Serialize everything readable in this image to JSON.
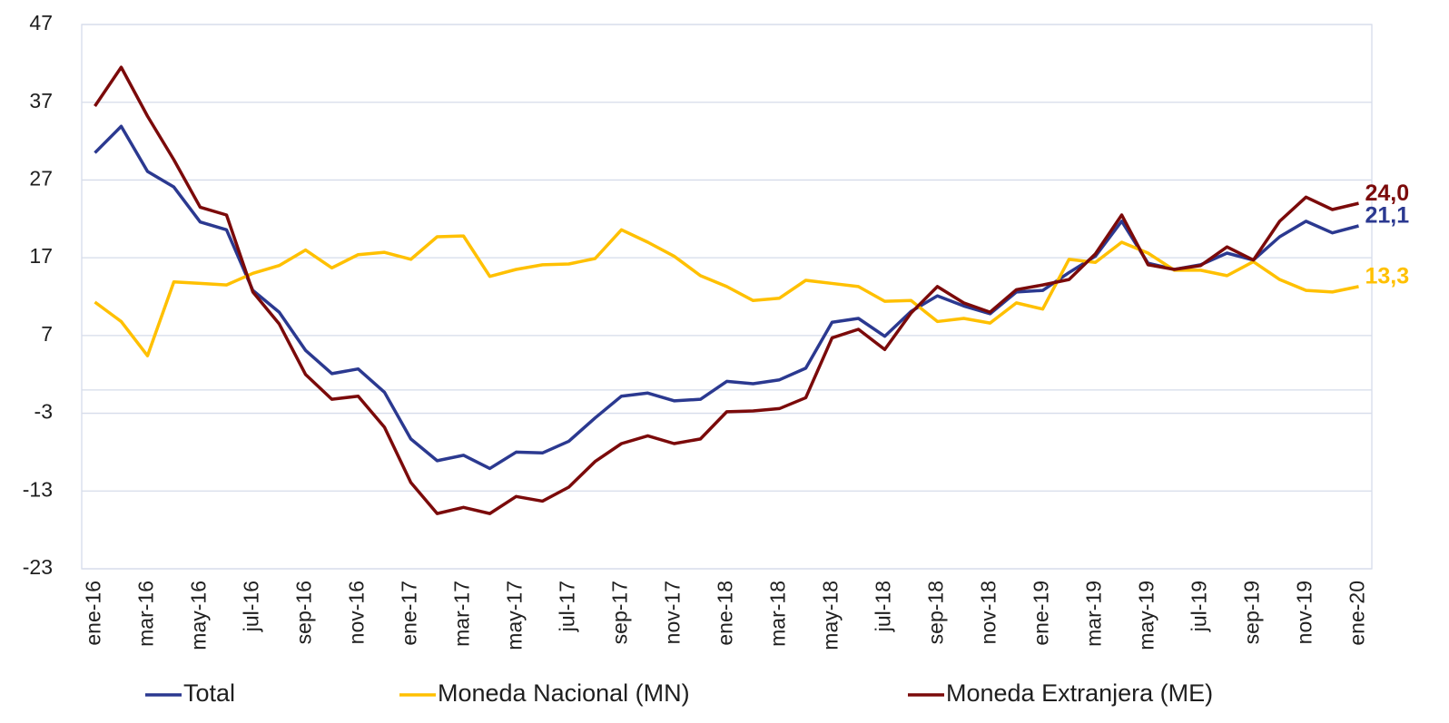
{
  "chart_data": {
    "type": "line",
    "categories": [
      "ene-16",
      null,
      "mar-16",
      null,
      "may-16",
      null,
      "jul-16",
      null,
      "sep-16",
      null,
      "nov-16",
      null,
      "ene-17",
      null,
      "mar-17",
      null,
      "may-17",
      null,
      "jul-17",
      null,
      "sep-17",
      null,
      "nov-17",
      null,
      "ene-18",
      null,
      "mar-18",
      null,
      "may-18",
      null,
      "jul-18",
      null,
      "sep-18",
      null,
      "nov-18",
      null,
      "ene-19",
      null,
      "mar-19",
      null,
      "may-19",
      null,
      "jul-19",
      null,
      "sep-19",
      null,
      "nov-19",
      null,
      "ene-20"
    ],
    "series": [
      {
        "name": "Total",
        "color": "#2b3990",
        "values": [
          30.5,
          33.9,
          28.1,
          26.1,
          21.6,
          20.6,
          12.8,
          10.0,
          5.1,
          2.1,
          2.7,
          -0.3,
          -6.3,
          -9.1,
          -8.4,
          -10.1,
          -8.0,
          -8.1,
          -6.6,
          -3.6,
          -0.8,
          -0.4,
          -1.4,
          -1.2,
          1.1,
          0.8,
          1.3,
          2.8,
          8.7,
          9.2,
          6.9,
          10.1,
          12.1,
          10.8,
          9.8,
          12.6,
          12.8,
          15.1,
          17.2,
          21.7,
          16.3,
          15.5,
          16.1,
          17.6,
          16.7,
          19.7,
          21.7,
          20.2,
          21.1
        ],
        "value_labels": [
          null,
          null,
          null,
          null,
          null,
          null,
          null,
          null,
          null,
          null,
          null,
          null,
          null,
          null,
          null,
          null,
          null,
          null,
          null,
          null,
          null,
          null,
          null,
          null,
          null,
          null,
          null,
          null,
          null,
          null,
          null,
          null,
          null,
          null,
          null,
          null,
          null,
          null,
          null,
          null,
          null,
          null,
          null,
          null,
          null,
          null,
          null,
          null,
          "21,1"
        ]
      },
      {
        "name": "Moneda Nacional (MN)",
        "color": "#ffc000",
        "values": [
          11.3,
          8.8,
          4.4,
          13.9,
          13.7,
          13.5,
          15.0,
          16.0,
          18.0,
          15.7,
          17.4,
          17.7,
          16.8,
          19.7,
          19.8,
          14.6,
          15.5,
          16.1,
          16.2,
          16.9,
          20.6,
          19.0,
          17.2,
          14.7,
          13.3,
          11.5,
          11.8,
          14.1,
          13.7,
          13.3,
          11.4,
          11.5,
          8.8,
          9.2,
          8.6,
          11.2,
          10.4,
          16.8,
          16.4,
          19.0,
          17.6,
          15.4,
          15.4,
          14.7,
          16.5,
          14.2,
          12.8,
          12.6,
          13.3
        ],
        "value_labels": [
          null,
          null,
          null,
          null,
          null,
          null,
          null,
          null,
          null,
          null,
          null,
          null,
          null,
          null,
          null,
          null,
          null,
          null,
          null,
          null,
          null,
          null,
          null,
          null,
          null,
          null,
          null,
          null,
          null,
          null,
          null,
          null,
          null,
          null,
          null,
          null,
          null,
          null,
          null,
          null,
          null,
          null,
          null,
          null,
          null,
          null,
          null,
          null,
          "13,3"
        ]
      },
      {
        "name": "Moneda Extranjera (ME)",
        "color": "#7b0a0a",
        "values": [
          36.5,
          41.5,
          35.2,
          29.6,
          23.5,
          22.5,
          12.6,
          8.5,
          2.0,
          -1.2,
          -0.8,
          -4.8,
          -11.9,
          -15.9,
          -15.1,
          -15.9,
          -13.7,
          -14.3,
          -12.5,
          -9.2,
          -6.9,
          -5.9,
          -6.9,
          -6.3,
          -2.8,
          -2.7,
          -2.4,
          -1.0,
          6.7,
          7.8,
          5.2,
          9.9,
          13.3,
          11.2,
          10.0,
          12.9,
          13.5,
          14.2,
          17.5,
          22.5,
          16.1,
          15.5,
          16.0,
          18.4,
          16.7,
          21.7,
          24.8,
          23.2,
          24.0
        ],
        "value_labels": [
          null,
          null,
          null,
          null,
          null,
          null,
          null,
          null,
          null,
          null,
          null,
          null,
          null,
          null,
          null,
          null,
          null,
          null,
          null,
          null,
          null,
          null,
          null,
          null,
          null,
          null,
          null,
          null,
          null,
          null,
          null,
          null,
          null,
          null,
          null,
          null,
          null,
          null,
          null,
          null,
          null,
          null,
          null,
          null,
          null,
          null,
          null,
          null,
          "24,0"
        ]
      }
    ],
    "ylim": [
      -23,
      47
    ],
    "yticks": [
      -23,
      -13,
      -3,
      7,
      17,
      27,
      37,
      47
    ],
    "grid": true,
    "legend": "bottom"
  }
}
